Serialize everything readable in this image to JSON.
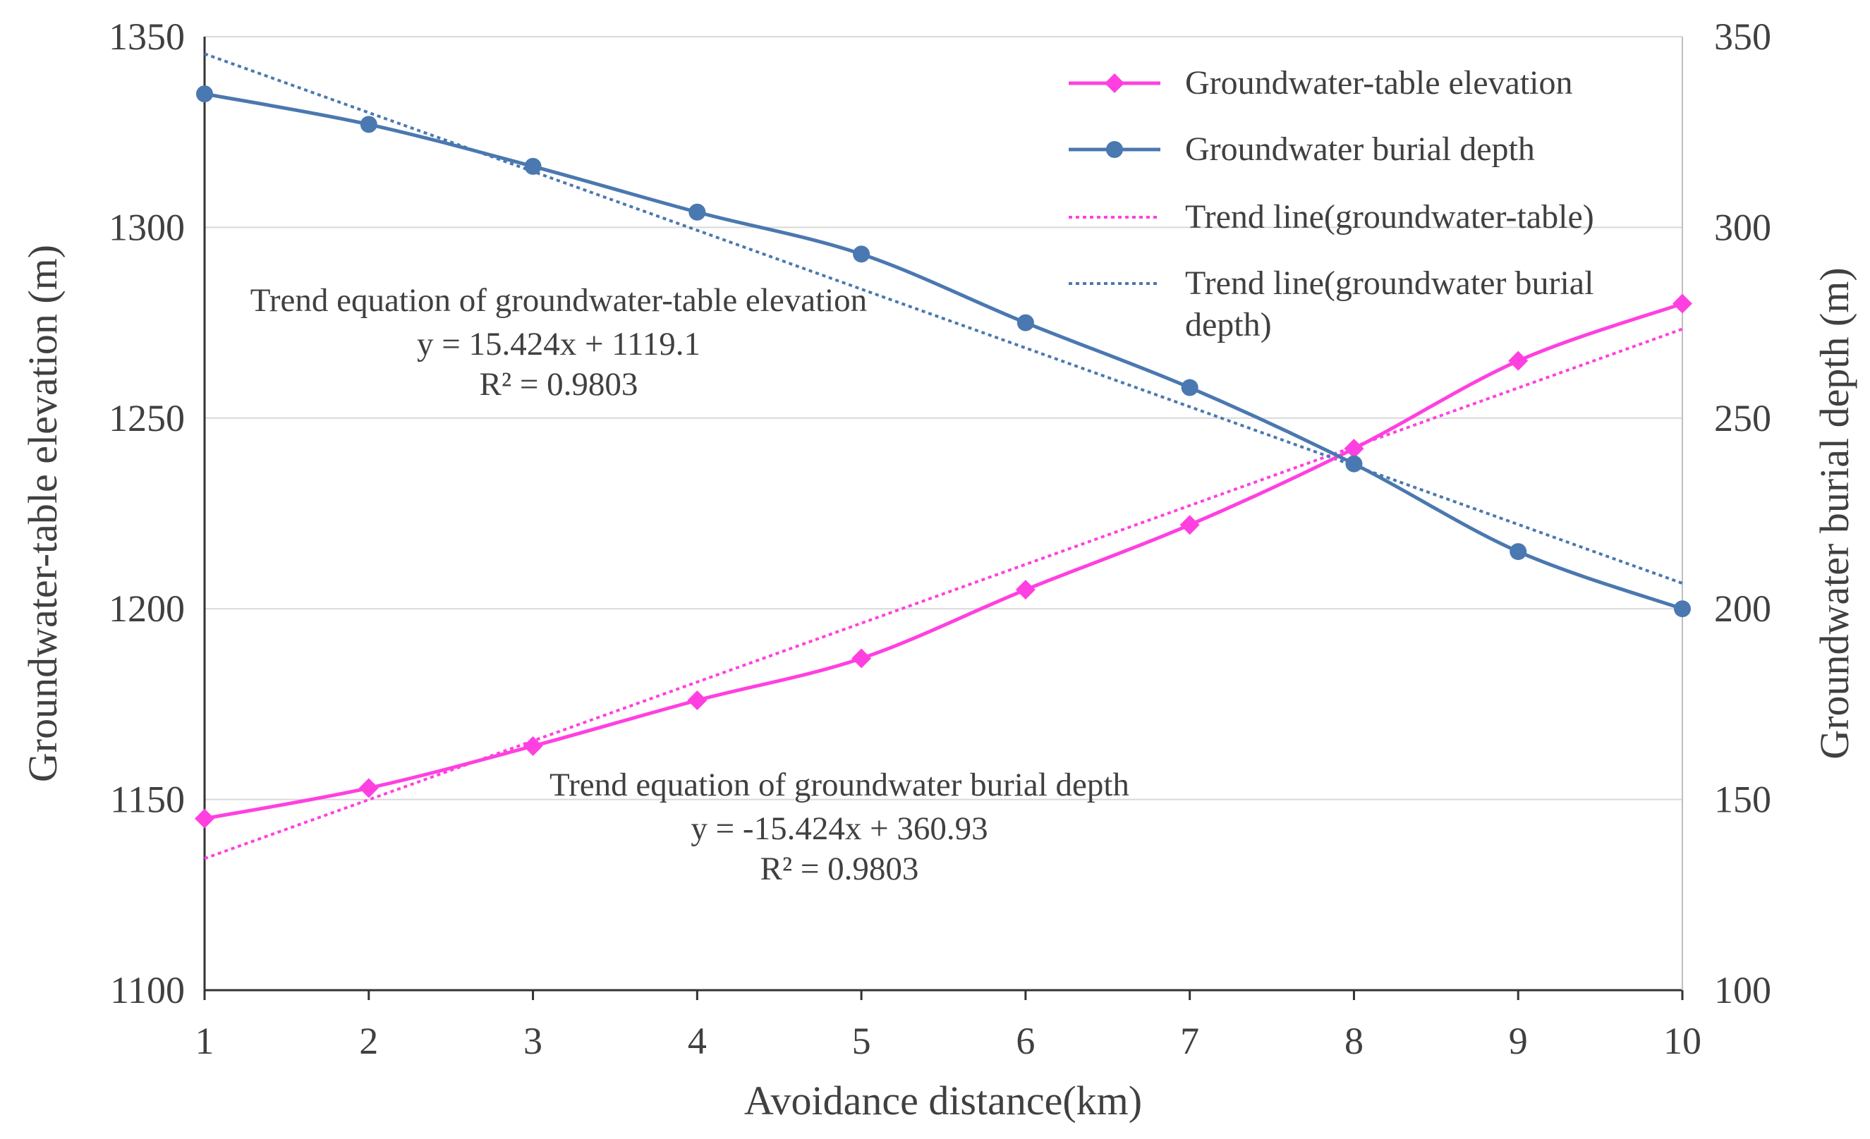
{
  "chart_data": {
    "type": "line",
    "xlabel": "Avoidance distance(km)",
    "ylabel_left": "Groundwater-table elevation (m)",
    "ylabel_right": "Groundwater burial depth (m)",
    "x": [
      1,
      2,
      3,
      4,
      5,
      6,
      7,
      8,
      9,
      10
    ],
    "x_tick_labels": [
      "1",
      "2",
      "3",
      "4",
      "5",
      "6",
      "7",
      "8",
      "9",
      "10"
    ],
    "ylim_left": [
      1100,
      1350
    ],
    "ylim_right": [
      100,
      350
    ],
    "y_left_ticks": [
      "1100",
      "1150",
      "1200",
      "1250",
      "1300",
      "1350"
    ],
    "y_right_ticks": [
      "100",
      "150",
      "200",
      "250",
      "300",
      "350"
    ],
    "grid": "horizontal",
    "legend_position": "top-right",
    "series": [
      {
        "name": "Groundwater-table elevation",
        "axis": "left",
        "color": "#ff40e0",
        "marker": "diamond",
        "values": [
          1145,
          1153,
          1164,
          1176,
          1187,
          1205,
          1222,
          1242,
          1265,
          1280
        ]
      },
      {
        "name": "Groundwater burial depth",
        "axis": "right",
        "color": "#4a78b0",
        "marker": "circle",
        "values": [
          335,
          327,
          316,
          304,
          293,
          275,
          258,
          238,
          215,
          200
        ]
      }
    ],
    "trendlines": [
      {
        "name": "Trend line(groundwater-table)",
        "legend_lines": [
          "Trend line(groundwater-table)"
        ],
        "axis": "left",
        "color": "#ff40e0",
        "slope": 15.424,
        "intercept": 1119.1
      },
      {
        "name": "Trend line(groundwater burial depth)",
        "legend_lines": [
          "Trend line(groundwater burial",
          "depth)"
        ],
        "axis": "right",
        "color": "#4a78b0",
        "slope": -15.424,
        "intercept": 360.93
      }
    ],
    "annotations": [
      {
        "lines": [
          "Trend equation of groundwater-table elevation",
          "y = 15.424x + 1119.1",
          "R² = 0.9803"
        ]
      },
      {
        "lines": [
          "Trend equation of groundwater burial depth",
          "y = -15.424x + 360.93",
          "R² = 0.9803"
        ]
      }
    ]
  }
}
